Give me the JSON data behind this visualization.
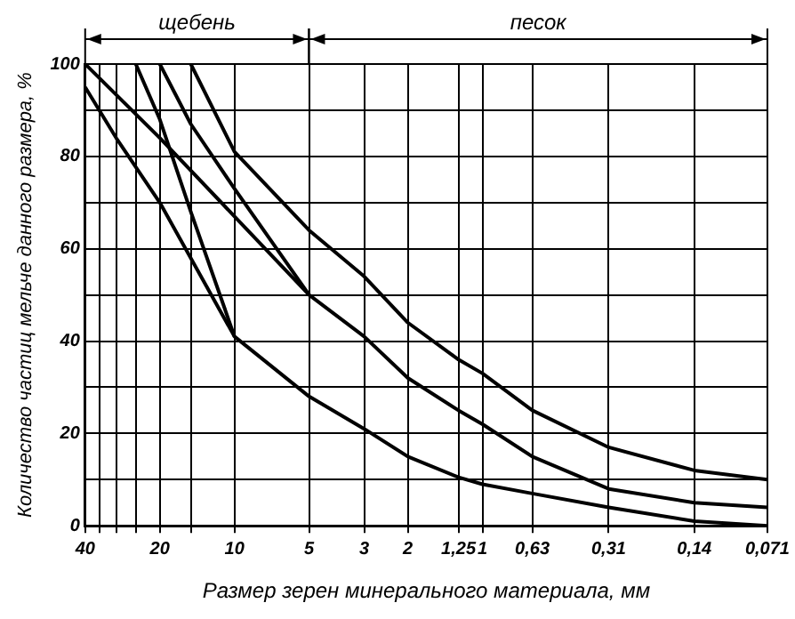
{
  "chart_data": {
    "type": "line",
    "xlabel": "Размер зерен минерального материала, мм",
    "ylabel": "Количество частиц мельче данного размера, %",
    "log": "x",
    "xlim": [
      40,
      0.071
    ],
    "xticks": [
      40,
      {
        "value": 35,
        "label": null
      },
      {
        "value": 30,
        "label": null
      },
      {
        "value": 25,
        "label": null
      },
      20,
      {
        "value": 15,
        "label": null
      },
      10,
      5,
      3,
      2,
      {
        "value": 1.25,
        "label": "1,25"
      },
      1,
      {
        "value": 0.63,
        "label": "0,63"
      },
      {
        "value": 0.31,
        "label": "0,31"
      },
      {
        "value": 0.14,
        "label": "0,14"
      },
      {
        "value": 0.071,
        "label": "0,071"
      }
    ],
    "ylim": [
      0,
      100
    ],
    "yticks": [
      0,
      {
        "value": 10,
        "label": null
      },
      20,
      {
        "value": 30,
        "label": null
      },
      40,
      {
        "value": 50,
        "label": null
      },
      60,
      {
        "value": 70,
        "label": null
      },
      80,
      {
        "value": 90,
        "label": null
      },
      100
    ],
    "grid": true,
    "legend": false,
    "marker": "none",
    "line_style": "solid",
    "annotations": [
      "щебень",
      "песок"
    ],
    "series": [
      {
        "color": "#000000",
        "x": [
          40,
          20,
          10,
          5
        ],
        "values": [
          100,
          84,
          67,
          50
        ]
      },
      {
        "color": "#000000",
        "x": [
          40,
          30,
          20,
          10
        ],
        "values": [
          95,
          84,
          70,
          41
        ]
      },
      {
        "color": "#000000",
        "x": [
          20,
          15,
          10,
          5,
          3,
          2,
          1.25,
          1,
          0.63,
          0.31,
          0.14,
          0.071
        ],
        "values": [
          100,
          87,
          73,
          50,
          41,
          32,
          25,
          22,
          15,
          8,
          5,
          4
        ]
      },
      {
        "color": "#000000",
        "x": [
          25,
          20,
          15,
          10,
          5,
          3,
          2,
          1.25,
          1,
          0.63,
          0.31,
          0.14,
          0.071
        ],
        "values": [
          100,
          88,
          68,
          41,
          28,
          21,
          15,
          10.5,
          9,
          7,
          4,
          1,
          0
        ]
      },
      {
        "color": "#000000",
        "x": [
          15,
          10,
          5,
          3,
          2,
          1.25,
          1,
          0.63,
          0.31,
          0.14,
          0.071
        ],
        "values": [
          100,
          81,
          64,
          54,
          44,
          36,
          33,
          25,
          17,
          12,
          10
        ]
      }
    ]
  }
}
